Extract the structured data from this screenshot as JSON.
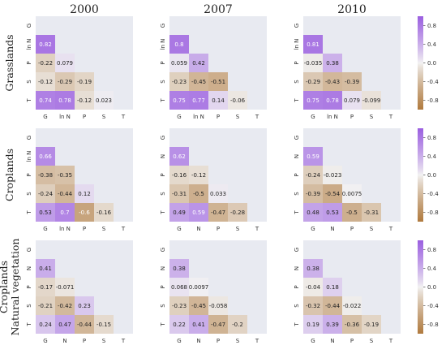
{
  "chart_data": {
    "type": "heatmap",
    "column_titles": [
      "2000",
      "2007",
      "2010"
    ],
    "row_titles": [
      [
        "Grasslands"
      ],
      [
        "Croplands"
      ],
      [
        "Croplands",
        "Natural vegetation"
      ]
    ],
    "colorbar": {
      "range": [
        -1,
        1
      ],
      "ticks": [
        "0.8",
        "0.4",
        "0.0",
        "-0.4",
        "-0.8"
      ]
    },
    "colors": {
      "positive": "#9b5fe0",
      "negative": "#b07a3e",
      "neutral": "#f2f2f2",
      "background": "#e8eaf1"
    },
    "panels": [
      {
        "row": 0,
        "col": 0,
        "labels": [
          "G",
          "ln N",
          "P",
          "S",
          "T"
        ],
        "lower": [
          [
            0.82
          ],
          [
            -0.22,
            0.079
          ],
          [
            -0.12,
            -0.29,
            -0.19
          ],
          [
            0.74,
            0.78,
            -0.12,
            0.023
          ]
        ],
        "display": [
          [
            "0.82"
          ],
          [
            "-0.22",
            "0.079"
          ],
          [
            "-0.12",
            "-0.29",
            "-0.19"
          ],
          [
            "0.74",
            "0.78",
            "-0.12",
            "0.023"
          ]
        ]
      },
      {
        "row": 0,
        "col": 1,
        "labels": [
          "G",
          "ln N",
          "P",
          "S",
          "T"
        ],
        "lower": [
          [
            0.8
          ],
          [
            0.059,
            0.42
          ],
          [
            -0.23,
            -0.45,
            -0.51
          ],
          [
            0.75,
            0.77,
            0.14,
            -0.06
          ]
        ],
        "display": [
          [
            "0.8"
          ],
          [
            "0.059",
            "0.42"
          ],
          [
            "-0.23",
            "-0.45",
            "-0.51"
          ],
          [
            "0.75",
            "0.77",
            "0.14",
            "-0.06"
          ]
        ]
      },
      {
        "row": 0,
        "col": 2,
        "labels": [
          "G",
          "ln N",
          "P",
          "S",
          "T"
        ],
        "lower": [
          [
            0.81
          ],
          [
            -0.035,
            0.38
          ],
          [
            -0.29,
            -0.43,
            -0.39
          ],
          [
            0.75,
            0.78,
            0.079,
            -0.099
          ]
        ],
        "display": [
          [
            "0.81"
          ],
          [
            "-0.035",
            "0.38"
          ],
          [
            "-0.29",
            "-0.43",
            "-0.39"
          ],
          [
            "0.75",
            "0.78",
            "0.079",
            "-0.099"
          ]
        ]
      },
      {
        "row": 1,
        "col": 0,
        "labels": [
          "G",
          "ln N",
          "P",
          "S",
          "T"
        ],
        "lower": [
          [
            0.66
          ],
          [
            -0.38,
            -0.35
          ],
          [
            -0.24,
            -0.44,
            0.12
          ],
          [
            0.53,
            0.7,
            -0.6,
            -0.16
          ]
        ],
        "display": [
          [
            "0.66"
          ],
          [
            "-0.38",
            "-0.35"
          ],
          [
            "-0.24",
            "-0.44",
            "0.12"
          ],
          [
            "0.53",
            "0.7",
            "-0.6",
            "-0.16"
          ]
        ]
      },
      {
        "row": 1,
        "col": 1,
        "labels": [
          "G",
          "N",
          "P",
          "S",
          "T"
        ],
        "lower": [
          [
            0.62
          ],
          [
            -0.16,
            -0.12
          ],
          [
            -0.31,
            -0.5,
            0.033
          ],
          [
            0.49,
            0.59,
            -0.47,
            -0.28
          ]
        ],
        "display": [
          [
            "0.62"
          ],
          [
            "-0.16",
            "-0.12"
          ],
          [
            "-0.31",
            "-0.5",
            "0.033"
          ],
          [
            "0.49",
            "0.59",
            "-0.47",
            "-0.28"
          ]
        ]
      },
      {
        "row": 1,
        "col": 2,
        "labels": [
          "G",
          "N",
          "P",
          "S",
          "T"
        ],
        "lower": [
          [
            0.59
          ],
          [
            -0.24,
            -0.023
          ],
          [
            -0.39,
            -0.54,
            0.0075
          ],
          [
            0.48,
            0.53,
            -0.5,
            -0.31
          ]
        ],
        "display": [
          [
            "0.59"
          ],
          [
            "-0.24",
            "-0.023"
          ],
          [
            "-0.39",
            "-0.54",
            "0.0075"
          ],
          [
            "0.48",
            "0.53",
            "-0.5",
            "-0.31"
          ]
        ]
      },
      {
        "row": 2,
        "col": 0,
        "labels": [
          "G",
          "N",
          "P",
          "S",
          "T"
        ],
        "lower": [
          [
            0.41
          ],
          [
            -0.17,
            -0.071
          ],
          [
            -0.21,
            -0.42,
            0.23
          ],
          [
            0.24,
            0.47,
            -0.44,
            -0.15
          ]
        ],
        "display": [
          [
            "0.41"
          ],
          [
            "-0.17",
            "-0.071"
          ],
          [
            "-0.21",
            "-0.42",
            "0.23"
          ],
          [
            "0.24",
            "0.47",
            "-0.44",
            "-0.15"
          ]
        ]
      },
      {
        "row": 2,
        "col": 1,
        "labels": [
          "G",
          "N",
          "P",
          "S",
          "T"
        ],
        "lower": [
          [
            0.38
          ],
          [
            0.068,
            0.0097
          ],
          [
            -0.23,
            -0.45,
            -0.058
          ],
          [
            0.22,
            0.41,
            -0.47,
            -0.2
          ]
        ],
        "display": [
          [
            "0.38"
          ],
          [
            "0.068",
            "0.0097"
          ],
          [
            "-0.23",
            "-0.45",
            "-0.058"
          ],
          [
            "0.22",
            "0.41",
            "-0.47",
            "-0.2"
          ]
        ]
      },
      {
        "row": 2,
        "col": 2,
        "labels": [
          "G",
          "N",
          "P",
          "S",
          "T"
        ],
        "lower": [
          [
            0.38
          ],
          [
            -0.04,
            0.18
          ],
          [
            -0.32,
            -0.44,
            -0.022
          ],
          [
            0.19,
            0.39,
            -0.36,
            -0.19
          ]
        ],
        "display": [
          [
            "0.38"
          ],
          [
            "-0.04",
            "0.18"
          ],
          [
            "-0.32",
            "-0.44",
            "-0.022"
          ],
          [
            "0.19",
            "0.39",
            "-0.36",
            "-0.19"
          ]
        ]
      }
    ]
  }
}
